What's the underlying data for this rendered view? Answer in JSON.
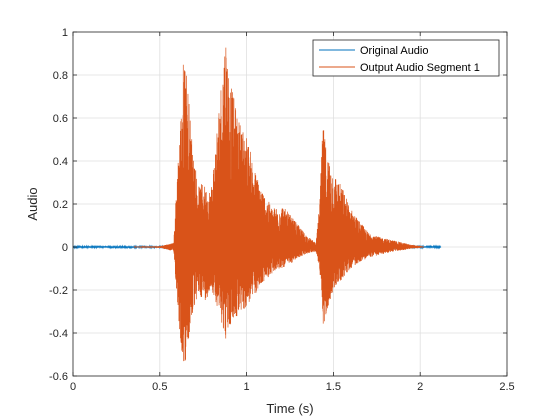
{
  "chart_data": {
    "type": "line",
    "title": "",
    "xlabel": "Time (s)",
    "ylabel": "Audio",
    "xlim": [
      0,
      2.5
    ],
    "ylim": [
      -0.6,
      1
    ],
    "xticks": [
      "0",
      "0.5",
      "1",
      "1.5",
      "2",
      "2.5"
    ],
    "yticks": [
      "-0.6",
      "-0.4",
      "-0.2",
      "0",
      "0.2",
      "0.4",
      "0.6",
      "0.8",
      "1"
    ],
    "grid": true,
    "legend_position": "top-right",
    "series": [
      {
        "name": "Original Audio",
        "color": "#0072BD",
        "description": "speech waveform, 0 to ~2.12 s",
        "x_range": [
          0,
          2.12
        ]
      },
      {
        "name": "Output Audio Segment 1",
        "color": "#D95319",
        "x_range": [
          0.35,
          2.02
        ],
        "envelope_points": [
          [
            0.35,
            0.002
          ],
          [
            0.5,
            0.004
          ],
          [
            0.58,
            0.02
          ],
          [
            0.6,
            0.35
          ],
          [
            0.62,
            0.6
          ],
          [
            0.64,
            0.95
          ],
          [
            0.65,
            0.88
          ],
          [
            0.68,
            0.55
          ],
          [
            0.72,
            0.28
          ],
          [
            0.75,
            0.3
          ],
          [
            0.78,
            0.25
          ],
          [
            0.8,
            0.3
          ],
          [
            0.84,
            0.65
          ],
          [
            0.87,
            0.92
          ],
          [
            0.88,
            1.0
          ],
          [
            0.9,
            0.8
          ],
          [
            0.95,
            0.6
          ],
          [
            1.0,
            0.52
          ],
          [
            1.05,
            0.35
          ],
          [
            1.1,
            0.25
          ],
          [
            1.15,
            0.18
          ],
          [
            1.2,
            0.2
          ],
          [
            1.25,
            0.15
          ],
          [
            1.3,
            0.1
          ],
          [
            1.35,
            0.05
          ],
          [
            1.4,
            0.02
          ],
          [
            1.42,
            0.2
          ],
          [
            1.44,
            0.58
          ],
          [
            1.46,
            0.45
          ],
          [
            1.5,
            0.35
          ],
          [
            1.55,
            0.28
          ],
          [
            1.6,
            0.18
          ],
          [
            1.65,
            0.12
          ],
          [
            1.7,
            0.07
          ],
          [
            1.75,
            0.05
          ],
          [
            1.8,
            0.04
          ],
          [
            1.85,
            0.03
          ],
          [
            1.9,
            0.02
          ],
          [
            1.95,
            0.01
          ],
          [
            2.0,
            0.005
          ],
          [
            2.02,
            0.0
          ]
        ],
        "lower_envelope_points": [
          [
            0.58,
            -0.02
          ],
          [
            0.6,
            -0.25
          ],
          [
            0.62,
            -0.45
          ],
          [
            0.64,
            -0.57
          ],
          [
            0.66,
            -0.5
          ],
          [
            0.68,
            -0.35
          ],
          [
            0.72,
            -0.22
          ],
          [
            0.76,
            -0.25
          ],
          [
            0.8,
            -0.2
          ],
          [
            0.84,
            -0.3
          ],
          [
            0.88,
            -0.43
          ],
          [
            0.9,
            -0.38
          ],
          [
            0.95,
            -0.32
          ],
          [
            1.0,
            -0.28
          ],
          [
            1.05,
            -0.22
          ],
          [
            1.1,
            -0.16
          ],
          [
            1.15,
            -0.12
          ],
          [
            1.2,
            -0.1
          ],
          [
            1.25,
            -0.08
          ],
          [
            1.3,
            -0.05
          ],
          [
            1.35,
            -0.03
          ],
          [
            1.4,
            -0.02
          ],
          [
            1.42,
            -0.1
          ],
          [
            1.44,
            -0.4
          ],
          [
            1.46,
            -0.3
          ],
          [
            1.5,
            -0.2
          ],
          [
            1.55,
            -0.15
          ],
          [
            1.6,
            -0.1
          ],
          [
            1.65,
            -0.07
          ],
          [
            1.7,
            -0.05
          ],
          [
            1.75,
            -0.04
          ],
          [
            1.8,
            -0.03
          ],
          [
            1.85,
            -0.02
          ],
          [
            1.9,
            -0.015
          ],
          [
            1.95,
            -0.008
          ],
          [
            2.0,
            -0.004
          ],
          [
            2.02,
            0.0
          ]
        ]
      }
    ]
  }
}
